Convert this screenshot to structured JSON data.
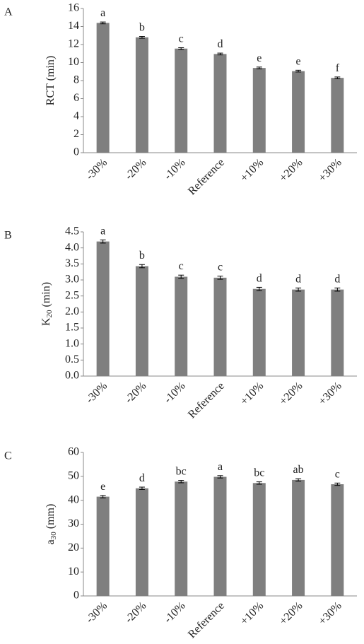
{
  "chart_data": [
    {
      "type": "bar",
      "panel": "A",
      "ylabel": {
        "base": "RCT (min)"
      },
      "categories": [
        "-30%",
        "-20%",
        "-10%",
        "Reference",
        "+10%",
        "+20%",
        "+30%"
      ],
      "values": [
        14.4,
        12.8,
        11.55,
        10.95,
        9.4,
        9.05,
        8.3
      ],
      "errors": [
        0.1,
        0.1,
        0.1,
        0.1,
        0.1,
        0.1,
        0.1
      ],
      "letters": [
        "a",
        "b",
        "c",
        "d",
        "e",
        "e",
        "f"
      ],
      "color": "#7f7f7f",
      "ylim": [
        0,
        16
      ],
      "yticks": [
        0,
        2,
        4,
        6,
        8,
        10,
        12,
        14,
        16
      ]
    },
    {
      "type": "bar",
      "panel": "B",
      "ylabel": {
        "base": "K",
        "sub": "20",
        "rest": " (min)"
      },
      "categories": [
        "-30%",
        "-20%",
        "-10%",
        "Reference",
        "+10%",
        "+20%",
        "+30%"
      ],
      "values": [
        4.2,
        3.43,
        3.1,
        3.07,
        2.72,
        2.7,
        2.7
      ],
      "errors": [
        0.05,
        0.05,
        0.05,
        0.05,
        0.05,
        0.05,
        0.05
      ],
      "letters": [
        "a",
        "b",
        "c",
        "c",
        "d",
        "d",
        "d"
      ],
      "color": "#7f7f7f",
      "ylim": [
        0,
        4.5
      ],
      "yticks": [
        {
          "value": 0,
          "label": "0.0"
        },
        0.5,
        {
          "value": 1,
          "label": "1.0"
        },
        1.5,
        {
          "value": 2,
          "label": "2.0"
        },
        2.5,
        {
          "value": 3,
          "label": "3.0"
        },
        3.5,
        {
          "value": 4,
          "label": "4.0"
        },
        4.5
      ]
    },
    {
      "type": "bar",
      "panel": "C",
      "ylabel": {
        "base": "a",
        "sub": "30",
        "rest": " (mm)"
      },
      "categories": [
        "-30%",
        "-20%",
        "-10%",
        "Reference",
        "+10%",
        "+20%",
        "+30%"
      ],
      "values": [
        41.5,
        45,
        47.8,
        49.8,
        47.2,
        48.5,
        46.7
      ],
      "errors": [
        0.5,
        0.5,
        0.5,
        0.5,
        0.5,
        0.5,
        0.5
      ],
      "letters": [
        "e",
        "d",
        "bc",
        "a",
        "bc",
        "ab",
        "c"
      ],
      "color": "#7f7f7f",
      "ylim": [
        0,
        60
      ],
      "yticks": [
        0,
        10,
        20,
        30,
        40,
        50,
        60
      ]
    }
  ]
}
